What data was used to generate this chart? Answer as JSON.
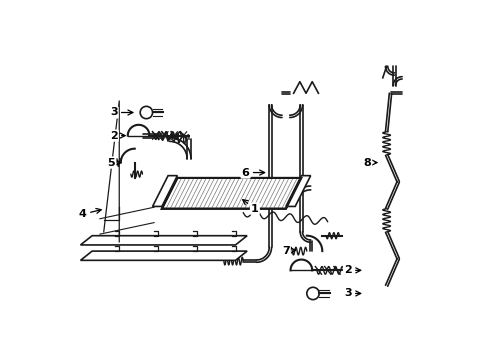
{
  "bg_color": "#ffffff",
  "line_color": "#1a1a1a",
  "label_color": "#000000",
  "fig_width": 4.89,
  "fig_height": 3.6,
  "dpi": 100
}
